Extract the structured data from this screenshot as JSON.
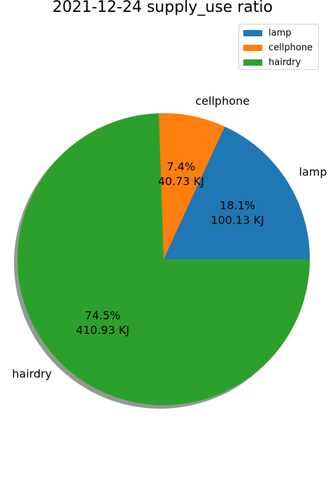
{
  "chart_data": {
    "type": "pie",
    "title": "2021-12-24 supply_use ratio",
    "unit": "KJ",
    "slices": [
      {
        "label": "lamp",
        "value": 100.13,
        "percent": "18.1%",
        "value_label": "100.13 KJ",
        "color": "#1f77b4"
      },
      {
        "label": "cellphone",
        "value": 40.73,
        "percent": "7.4%",
        "value_label": "40.73 KJ",
        "color": "#ff7f0e"
      },
      {
        "label": "hairdry",
        "value": 410.93,
        "percent": "74.5%",
        "value_label": "410.93 KJ",
        "color": "#2ca02c"
      }
    ],
    "start_angle_deg": 0,
    "direction": "counterclockwise",
    "shadow": true,
    "legend": {
      "position": "top-right",
      "entries": [
        "lamp",
        "cellphone",
        "hairdry"
      ]
    }
  }
}
